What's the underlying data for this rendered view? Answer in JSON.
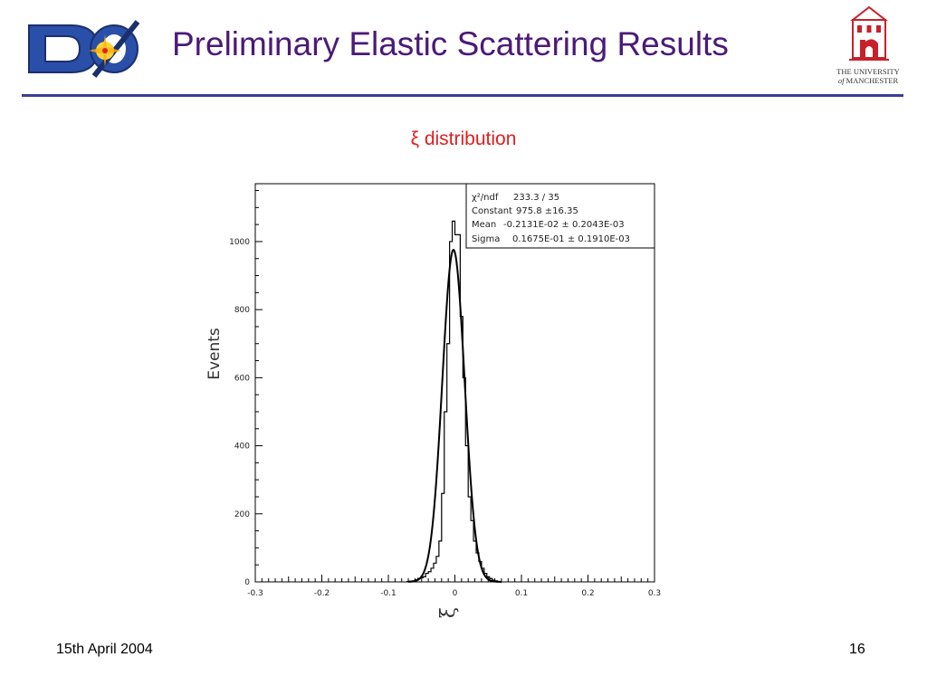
{
  "slide": {
    "title": "Preliminary Elastic Scattering Results",
    "date": "15th April 2004",
    "page_number": "16",
    "logos": {
      "left": {
        "icon": "d0-experiment-logo",
        "lettering": "DØ"
      },
      "right": {
        "icon": "university-of-manchester-logo",
        "line1": "THE UNIVERSITY",
        "line2_of": "of",
        "line2_rest": "MANCHESTER"
      }
    },
    "colors": {
      "title": "#4b1a78",
      "rule": "#3d3d99",
      "heading": "#e01e1e"
    }
  },
  "chart_data": {
    "type": "histogram",
    "heading": "ξ distribution",
    "xlabel": "ξ",
    "ylabel": "Events",
    "xlim": [
      -0.3,
      0.3
    ],
    "ylim": [
      0,
      1170
    ],
    "x_ticks": [
      -0.3,
      -0.2,
      -0.1,
      0,
      0.1,
      0.2,
      0.3
    ],
    "x_tick_labels": [
      "-0.3",
      "-0.2",
      "-0.1",
      "0",
      "0.1",
      "0.2",
      "0.3"
    ],
    "y_ticks": [
      0,
      200,
      400,
      600,
      800,
      1000
    ],
    "y_tick_labels": [
      "0",
      "200",
      "400",
      "600",
      "800",
      "1000"
    ],
    "grid": false,
    "bin_width": 0.004,
    "histogram": {
      "name": "data",
      "bin_lows": [
        -0.072,
        -0.068,
        -0.064,
        -0.06,
        -0.056,
        -0.052,
        -0.048,
        -0.044,
        -0.04,
        -0.036,
        -0.032,
        -0.028,
        -0.024,
        -0.02,
        -0.016,
        -0.012,
        -0.008,
        -0.004,
        0,
        0.004,
        0.008,
        0.012,
        0.016,
        0.02,
        0.024,
        0.028,
        0.032,
        0.036,
        0.04,
        0.044,
        0.048,
        0.052,
        0.056,
        0.06,
        0.064
      ],
      "counts": [
        1,
        2,
        3,
        6,
        10,
        12,
        15,
        25,
        30,
        40,
        55,
        75,
        120,
        260,
        500,
        700,
        1000,
        1060,
        1020,
        1020,
        780,
        600,
        400,
        250,
        180,
        120,
        85,
        60,
        40,
        25,
        15,
        10,
        5,
        3,
        1
      ]
    },
    "fit": {
      "name": "gaussian fit",
      "function": "gaussian",
      "constant": 975.8,
      "mean": -0.002131,
      "sigma": 0.01675,
      "x_range": [
        -0.07,
        0.07
      ]
    },
    "stats_box": {
      "placement": "top-right",
      "chi2_label": "χ²/ndf",
      "chi2_value": "233.3 / 35",
      "constant_label": "Constant",
      "constant_value": "975.8 ±16.35",
      "mean_label": "Mean",
      "mean_value": "-0.2131E-02 ± 0.2043E-03",
      "sigma_label": "Sigma",
      "sigma_value": "0.1675E-01 ± 0.1910E-03"
    }
  }
}
